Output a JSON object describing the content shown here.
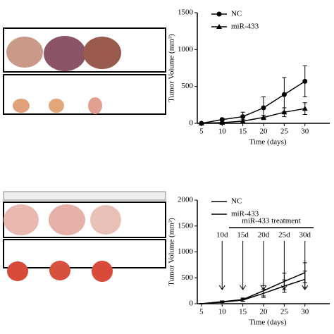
{
  "chart_data": [
    {
      "type": "line",
      "ylabel": "Tumor Volume (mm³)",
      "xlabel": "Time (days)",
      "x": [
        5,
        10,
        15,
        20,
        25,
        30
      ],
      "xlim": [
        4,
        36
      ],
      "xticks": [
        5,
        10,
        15,
        20,
        25,
        30
      ],
      "ylim": [
        0,
        1500
      ],
      "yticks": [
        0,
        500,
        1000,
        1500
      ],
      "legend": "upper left",
      "series": [
        {
          "name": "NC",
          "color": "#000000",
          "marker": "circle",
          "values": [
            0,
            50,
            90,
            210,
            390,
            570
          ],
          "errors": [
            5,
            20,
            60,
            150,
            230,
            210
          ]
        },
        {
          "name": "miR-433",
          "color": "#000000",
          "marker": "triangle",
          "values": [
            0,
            10,
            30,
            80,
            150,
            200
          ],
          "errors": [
            3,
            8,
            20,
            30,
            60,
            80
          ]
        }
      ]
    },
    {
      "type": "line",
      "ylabel": "Tumor Volume (mm³)",
      "xlabel": "Time (days)",
      "x": [
        5,
        10,
        15,
        20,
        25,
        30
      ],
      "xlim": [
        4,
        36
      ],
      "xticks": [
        5,
        10,
        15,
        20,
        25,
        30
      ],
      "ylim": [
        0,
        2000
      ],
      "yticks": [
        0,
        500,
        1000,
        1500,
        2000
      ],
      "legend": "upper left",
      "annotation": "miR-433 treatment",
      "annotation_labels": [
        "10d",
        "15d",
        "20d",
        "25d",
        "30d"
      ],
      "series": [
        {
          "name": "NC",
          "color": "#000000",
          "marker": "none",
          "values": [
            0,
            40,
            80,
            250,
            430,
            600
          ],
          "errors": [
            5,
            15,
            30,
            100,
            160,
            190
          ]
        },
        {
          "name": "miR-433",
          "color": "#000000",
          "marker": "none",
          "values": [
            0,
            30,
            70,
            200,
            340,
            470
          ],
          "errors": [
            5,
            10,
            25,
            80,
            120,
            160
          ]
        }
      ]
    }
  ]
}
